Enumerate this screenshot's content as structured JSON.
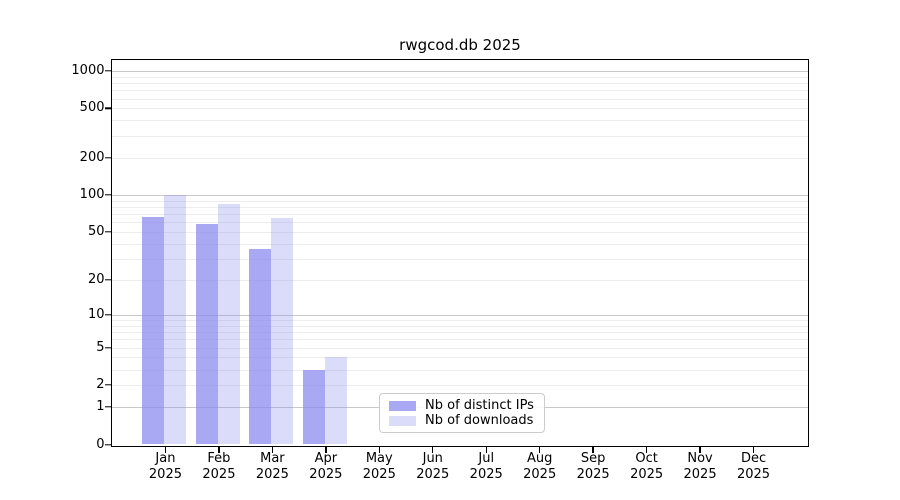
{
  "title": "rwgcod.db 2025",
  "chart_data": {
    "type": "bar",
    "categories": [
      "Jan 2025",
      "Feb 2025",
      "Mar 2025",
      "Apr 2025",
      "May 2025",
      "Jun 2025",
      "Jul 2025",
      "Aug 2025",
      "Sep 2025",
      "Oct 2025",
      "Nov 2025",
      "Dec 2025"
    ],
    "series": [
      {
        "name": "Nb of distinct IPs",
        "color": "#8888ee",
        "alpha": 0.72,
        "values": [
          66,
          58,
          36,
          3,
          0,
          0,
          0,
          0,
          0,
          0,
          0,
          0
        ]
      },
      {
        "name": "Nb of downloads",
        "color": "#8888ee",
        "alpha": 0.3,
        "values": [
          100,
          85,
          65,
          4,
          0,
          0,
          0,
          0,
          0,
          0,
          0,
          0
        ]
      }
    ],
    "yscale": "log10(1+v)",
    "ylim": [
      0,
      1225
    ],
    "y_ticks": [
      0,
      1,
      2,
      5,
      10,
      20,
      50,
      100,
      200,
      500,
      1000
    ],
    "y_major_gridlines": [
      1,
      10,
      100,
      1000
    ],
    "grid": true,
    "legend_position": "lower center",
    "xlabel": "",
    "ylabel": ""
  },
  "colors": {
    "background": "#ffffff",
    "axis": "#000000",
    "text": "#000000",
    "gridline_major": "#c9c9c9",
    "gridline_minor": "#ededed",
    "legend_border": "#cccccc"
  }
}
